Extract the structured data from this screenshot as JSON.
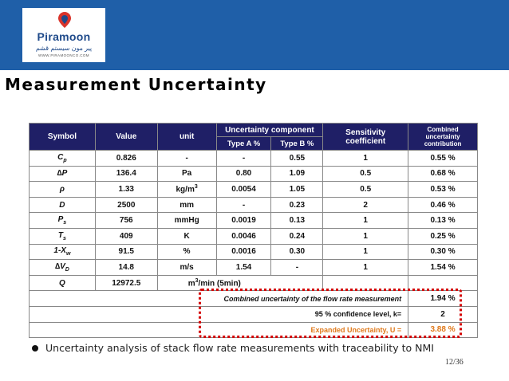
{
  "logo": {
    "brand": "Piramoon",
    "subtitle": "پیر مون سیستم قشم",
    "url": "WWW.PIRAMOONCO.COM",
    "colors": {
      "primary": "#1f4a8a",
      "accent": "#d9342b"
    }
  },
  "header": {
    "bar_color": "#1f5fa8"
  },
  "title": "Measurement Uncertainty",
  "table": {
    "headers": {
      "symbol": "Symbol",
      "value": "Value",
      "unit": "unit",
      "uncertainty_component": "Uncertainty component",
      "type_a": "Type A %",
      "type_b": "Type B %",
      "sensitivity": "Sensitivity coefficient",
      "combined_1": "Combined",
      "combined_2": "uncertainty",
      "combined_3": "contribution"
    },
    "rows": [
      {
        "sym": "C",
        "sub": "p",
        "value": "0.826",
        "unit": "-",
        "a": "-",
        "b": "0.55",
        "sens": "1",
        "comb": "0.55 %"
      },
      {
        "sym": "∆P",
        "sub": "",
        "value": "136.4",
        "unit": "Pa",
        "a": "0.80",
        "b": "1.09",
        "sens": "0.5",
        "comb": "0.68 %"
      },
      {
        "sym": "ρ",
        "sub": "",
        "value": "1.33",
        "unit": "kg/m",
        "sup": "3",
        "a": "0.0054",
        "b": "1.05",
        "sens": "0.5",
        "comb": "0.53 %"
      },
      {
        "sym": "D",
        "sub": "",
        "value": "2500",
        "unit": "mm",
        "a": "-",
        "b": "0.23",
        "sens": "2",
        "comb": "0.46 %"
      },
      {
        "sym": "P",
        "sub": "s",
        "value": "756",
        "unit": "mmHg",
        "a": "0.0019",
        "b": "0.13",
        "sens": "1",
        "comb": "0.13 %"
      },
      {
        "sym": "T",
        "sub": "s",
        "value": "409",
        "unit": "K",
        "a": "0.0046",
        "b": "0.24",
        "sens": "1",
        "comb": "0.25 %"
      },
      {
        "sym": "1-X",
        "sub": "w",
        "value": "91.5",
        "unit": "%",
        "a": "0.0016",
        "b": "0.30",
        "sens": "1",
        "comb": "0.30 %"
      },
      {
        "sym": "∆V",
        "sub": "D",
        "value": "14.8",
        "unit": "m/s",
        "a": "1.54",
        "b": "-",
        "sens": "1",
        "comb": "1.54 %"
      }
    ],
    "q_row": {
      "sym": "Q",
      "value": "12972.5",
      "unit_main": "m",
      "unit_sup": "3",
      "unit_rest": "/min (5min)"
    },
    "combined_label": "Combined uncertainty of the flow rate measurement",
    "combined_value": "1.94 %",
    "confidence_label": "95 % confidence level, k=",
    "confidence_value": "2",
    "expanded_label": "Expanded Uncertainty, U =",
    "expanded_value": "3.88 %"
  },
  "bullet": "Uncertainty analysis of stack flow rate measurements with traceability to NMI",
  "page": "12/36"
}
